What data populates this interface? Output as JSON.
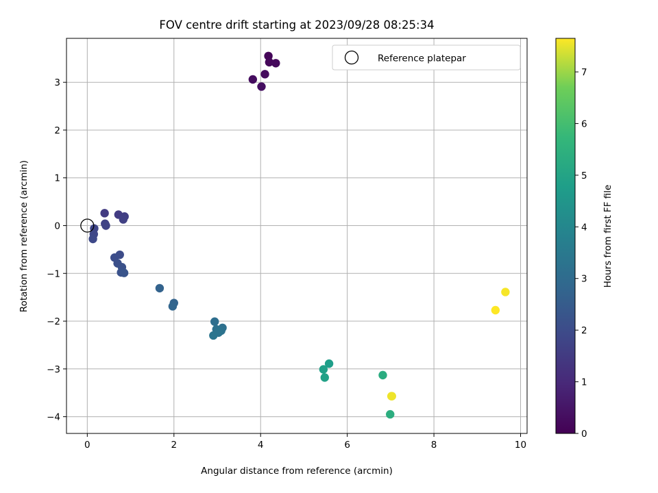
{
  "chart_data": {
    "type": "scatter",
    "title": "FOV centre drift starting at 2023/09/28 08:25:34",
    "xlabel": "Angular distance from reference (arcmin)",
    "ylabel": "Rotation from reference (arcmin)",
    "xlim": [
      -0.48,
      10.15
    ],
    "ylim": [
      -4.35,
      3.92
    ],
    "xticks": [
      0,
      2,
      4,
      6,
      8,
      10
    ],
    "yticks": [
      -4,
      -3,
      -2,
      -1,
      0,
      1,
      2,
      3
    ],
    "grid": true,
    "legend": {
      "placement": "upper-right",
      "entries": [
        "Reference platepar"
      ]
    },
    "reference_point": {
      "x": 0,
      "y": 0
    },
    "colorbar": {
      "label": "Hours from first FF file",
      "range": [
        0,
        7.65
      ],
      "ticks": [
        0,
        1,
        2,
        3,
        4,
        5,
        6,
        7
      ],
      "colormap": "viridis"
    },
    "points": [
      {
        "x": 4.18,
        "y": 3.55,
        "c": 0.1
      },
      {
        "x": 4.2,
        "y": 3.42,
        "c": 0.15
      },
      {
        "x": 4.35,
        "y": 3.4,
        "c": 0.2
      },
      {
        "x": 4.1,
        "y": 3.17,
        "c": 0.25
      },
      {
        "x": 3.82,
        "y": 3.06,
        "c": 0.3
      },
      {
        "x": 4.02,
        "y": 2.91,
        "c": 0.35
      },
      {
        "x": 0.4,
        "y": 0.26,
        "c": 1.5
      },
      {
        "x": 0.72,
        "y": 0.23,
        "c": 1.55
      },
      {
        "x": 0.86,
        "y": 0.19,
        "c": 1.6
      },
      {
        "x": 0.83,
        "y": 0.13,
        "c": 1.65
      },
      {
        "x": 0.41,
        "y": 0.04,
        "c": 1.7
      },
      {
        "x": 0.43,
        "y": 0.0,
        "c": 1.75
      },
      {
        "x": 0.16,
        "y": -0.06,
        "c": 1.8
      },
      {
        "x": 0.15,
        "y": -0.18,
        "c": 1.85
      },
      {
        "x": 0.13,
        "y": -0.28,
        "c": 1.9
      },
      {
        "x": 0.75,
        "y": -0.61,
        "c": 2.0
      },
      {
        "x": 0.63,
        "y": -0.67,
        "c": 2.05
      },
      {
        "x": 0.7,
        "y": -0.79,
        "c": 2.1
      },
      {
        "x": 0.8,
        "y": -0.87,
        "c": 2.15
      },
      {
        "x": 0.78,
        "y": -0.98,
        "c": 2.2
      },
      {
        "x": 0.85,
        "y": -0.99,
        "c": 2.25
      },
      {
        "x": 1.67,
        "y": -1.31,
        "c": 2.7
      },
      {
        "x": 2.0,
        "y": -1.62,
        "c": 2.75
      },
      {
        "x": 1.97,
        "y": -1.69,
        "c": 2.8
      },
      {
        "x": 2.94,
        "y": -2.01,
        "c": 3.1
      },
      {
        "x": 3.12,
        "y": -2.14,
        "c": 3.15
      },
      {
        "x": 2.98,
        "y": -2.17,
        "c": 3.2
      },
      {
        "x": 3.09,
        "y": -2.2,
        "c": 3.25
      },
      {
        "x": 3.03,
        "y": -2.24,
        "c": 3.3
      },
      {
        "x": 2.91,
        "y": -2.3,
        "c": 3.35
      },
      {
        "x": 5.58,
        "y": -2.89,
        "c": 4.8
      },
      {
        "x": 5.45,
        "y": -3.01,
        "c": 4.85
      },
      {
        "x": 5.48,
        "y": -3.18,
        "c": 4.9
      },
      {
        "x": 6.82,
        "y": -3.13,
        "c": 5.3
      },
      {
        "x": 6.99,
        "y": -3.95,
        "c": 5.35
      },
      {
        "x": 7.03,
        "y": -3.57,
        "c": 7.5
      },
      {
        "x": 7.02,
        "y": -3.57,
        "c": 7.55
      },
      {
        "x": 9.65,
        "y": -1.39,
        "c": 7.6
      },
      {
        "x": 9.42,
        "y": -1.77,
        "c": 7.65
      }
    ]
  }
}
